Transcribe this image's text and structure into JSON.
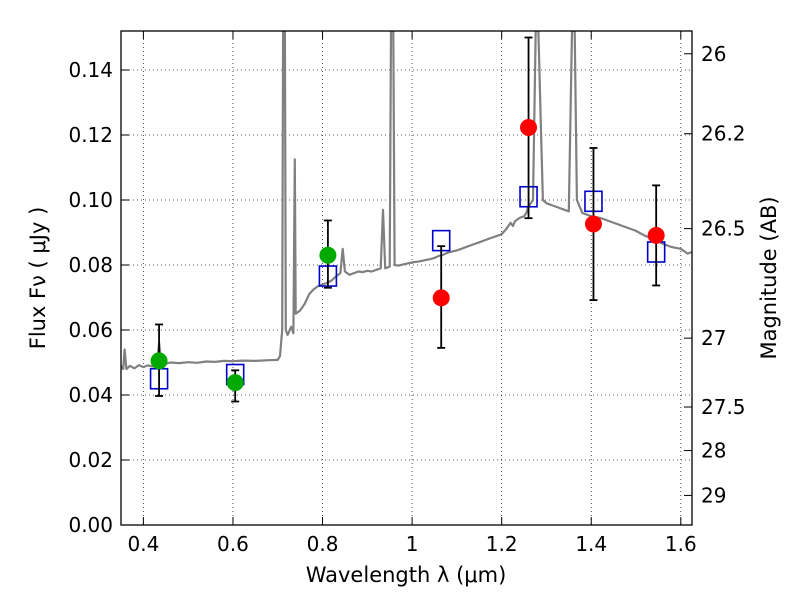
{
  "chart_data": {
    "type": "scatter",
    "xlabel": "Wavelength  λ (μm)",
    "ylabel": "Flux  Fν  ( μJy )",
    "y2label": "Magnitude (AB)",
    "xlim": [
      0.35,
      1.625
    ],
    "ylim": [
      0.0,
      0.152
    ],
    "grid": true,
    "x_ticks": [
      0.4,
      0.6,
      0.8,
      1.0,
      1.2,
      1.4,
      1.6
    ],
    "x_tick_labels": [
      "0.4",
      "0.6",
      "0.8",
      "1",
      "1.2",
      "1.4",
      "1.6"
    ],
    "y_ticks": [
      0.0,
      0.02,
      0.04,
      0.06,
      0.08,
      0.1,
      0.12,
      0.14
    ],
    "y_tick_labels": [
      "0.00",
      "0.02",
      "0.04",
      "0.06",
      "0.08",
      "0.10",
      "0.12",
      "0.14"
    ],
    "y2_ticks": [
      {
        "flux": 0.145,
        "label": "26"
      },
      {
        "flux": 0.1204,
        "label": "26.2"
      },
      {
        "flux": 0.0912,
        "label": "26.5"
      },
      {
        "flux": 0.0575,
        "label": "27"
      },
      {
        "flux": 0.0363,
        "label": "27.5"
      },
      {
        "flux": 0.0229,
        "label": "28"
      },
      {
        "flux": 0.0091,
        "label": "29"
      }
    ],
    "colors": {
      "model": "#808080",
      "green": "#00aa00",
      "red": "#ff0000",
      "square": "#0000cc",
      "errorbar": "#000000"
    },
    "series": [
      {
        "type": "line",
        "color": "#808080",
        "points": [
          [
            0.35,
            0.049
          ],
          [
            0.355,
            0.048
          ],
          [
            0.358,
            0.054
          ],
          [
            0.362,
            0.048
          ],
          [
            0.37,
            0.049
          ],
          [
            0.38,
            0.0482
          ],
          [
            0.39,
            0.0492
          ],
          [
            0.4,
            0.0486
          ],
          [
            0.41,
            0.0491
          ],
          [
            0.42,
            0.0488
          ],
          [
            0.43,
            0.0492
          ],
          [
            0.435,
            0.056
          ],
          [
            0.44,
            0.05
          ],
          [
            0.45,
            0.0496
          ],
          [
            0.46,
            0.05
          ],
          [
            0.48,
            0.0498
          ],
          [
            0.5,
            0.0501
          ],
          [
            0.52,
            0.0499
          ],
          [
            0.54,
            0.0503
          ],
          [
            0.56,
            0.0502
          ],
          [
            0.58,
            0.0505
          ],
          [
            0.6,
            0.0504
          ],
          [
            0.62,
            0.0506
          ],
          [
            0.65,
            0.0505
          ],
          [
            0.68,
            0.0507
          ],
          [
            0.7,
            0.0508
          ],
          [
            0.705,
            0.052
          ],
          [
            0.71,
            0.06
          ],
          [
            0.712,
            0.152
          ],
          [
            0.716,
            0.152
          ],
          [
            0.718,
            0.06
          ],
          [
            0.722,
            0.0585
          ],
          [
            0.73,
            0.061
          ],
          [
            0.735,
            0.059
          ],
          [
            0.738,
            0.1125
          ],
          [
            0.74,
            0.065
          ],
          [
            0.75,
            0.066
          ],
          [
            0.76,
            0.068
          ],
          [
            0.77,
            0.071
          ],
          [
            0.78,
            0.0725
          ],
          [
            0.79,
            0.0735
          ],
          [
            0.8,
            0.074
          ],
          [
            0.81,
            0.0745
          ],
          [
            0.82,
            0.0752
          ],
          [
            0.83,
            0.0765
          ],
          [
            0.84,
            0.0775
          ],
          [
            0.845,
            0.085
          ],
          [
            0.85,
            0.078
          ],
          [
            0.86,
            0.077
          ],
          [
            0.87,
            0.0775
          ],
          [
            0.88,
            0.078
          ],
          [
            0.89,
            0.0778
          ],
          [
            0.9,
            0.0782
          ],
          [
            0.91,
            0.078
          ],
          [
            0.92,
            0.0785
          ],
          [
            0.93,
            0.079
          ],
          [
            0.935,
            0.097
          ],
          [
            0.94,
            0.079
          ],
          [
            0.95,
            0.0795
          ],
          [
            0.953,
            0.152
          ],
          [
            0.958,
            0.152
          ],
          [
            0.961,
            0.08
          ],
          [
            0.97,
            0.0798
          ],
          [
            0.98,
            0.0802
          ],
          [
            0.99,
            0.0805
          ],
          [
            1.0,
            0.0808
          ],
          [
            1.01,
            0.081
          ],
          [
            1.02,
            0.0812
          ],
          [
            1.03,
            0.0815
          ],
          [
            1.04,
            0.0818
          ],
          [
            1.05,
            0.0822
          ],
          [
            1.06,
            0.0828
          ],
          [
            1.07,
            0.0832
          ],
          [
            1.08,
            0.0838
          ],
          [
            1.09,
            0.0842
          ],
          [
            1.1,
            0.0845
          ],
          [
            1.11,
            0.085
          ],
          [
            1.12,
            0.0855
          ],
          [
            1.13,
            0.086
          ],
          [
            1.14,
            0.0865
          ],
          [
            1.15,
            0.087
          ],
          [
            1.16,
            0.0875
          ],
          [
            1.17,
            0.088
          ],
          [
            1.18,
            0.0885
          ],
          [
            1.19,
            0.089
          ],
          [
            1.2,
            0.0895
          ],
          [
            1.21,
            0.091
          ],
          [
            1.22,
            0.093
          ],
          [
            1.225,
            0.092
          ],
          [
            1.23,
            0.0935
          ],
          [
            1.24,
            0.0945
          ],
          [
            1.25,
            0.095
          ],
          [
            1.255,
            0.096
          ],
          [
            1.26,
            0.098
          ],
          [
            1.27,
            0.1
          ],
          [
            1.276,
            0.152
          ],
          [
            1.282,
            0.152
          ],
          [
            1.288,
            0.12
          ],
          [
            1.292,
            0.1
          ],
          [
            1.3,
            0.099
          ],
          [
            1.31,
            0.0985
          ],
          [
            1.32,
            0.098
          ],
          [
            1.33,
            0.0975
          ],
          [
            1.34,
            0.097
          ],
          [
            1.35,
            0.0965
          ],
          [
            1.357,
            0.152
          ],
          [
            1.363,
            0.152
          ],
          [
            1.368,
            0.1
          ],
          [
            1.38,
            0.096
          ],
          [
            1.39,
            0.0955
          ],
          [
            1.4,
            0.095
          ],
          [
            1.42,
            0.0945
          ],
          [
            1.44,
            0.0935
          ],
          [
            1.46,
            0.0925
          ],
          [
            1.48,
            0.0915
          ],
          [
            1.5,
            0.0905
          ],
          [
            1.52,
            0.089
          ],
          [
            1.54,
            0.088
          ],
          [
            1.56,
            0.0865
          ],
          [
            1.58,
            0.0855
          ],
          [
            1.6,
            0.085
          ],
          [
            1.615,
            0.0835
          ],
          [
            1.625,
            0.084
          ]
        ]
      },
      {
        "type": "scatter_squares",
        "color": "#0000cc",
        "x": [
          0.435,
          0.605,
          0.812,
          1.065,
          1.26,
          1.405,
          1.545
        ],
        "y": [
          0.045,
          0.0463,
          0.0766,
          0.0875,
          0.101,
          0.0996,
          0.084
        ]
      },
      {
        "type": "scatter_errorbars",
        "color": "#00aa00",
        "x": [
          0.435,
          0.605,
          0.812
        ],
        "y": [
          0.0505,
          0.0438,
          0.083
        ],
        "yerr_low": [
          0.0397,
          0.038,
          0.073
        ],
        "yerr_high": [
          0.0617,
          0.0476,
          0.0937
        ]
      },
      {
        "type": "scatter_errorbars",
        "color": "#ff0000",
        "x": [
          1.065,
          1.26,
          1.405,
          1.545
        ],
        "y": [
          0.0699,
          0.1223,
          0.0926,
          0.0891
        ],
        "yerr_low": [
          0.0545,
          0.0944,
          0.0692,
          0.0737
        ],
        "yerr_high": [
          0.0858,
          0.15,
          0.116,
          0.1045
        ]
      }
    ]
  }
}
